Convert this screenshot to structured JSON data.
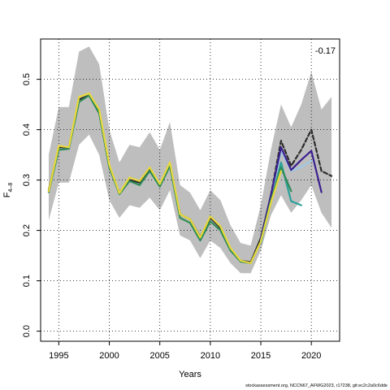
{
  "chart_data": {
    "type": "line",
    "title": "",
    "xlabel": "Years",
    "ylabel_main": "F",
    "ylabel_sub": "4–8",
    "xlim": [
      1993.2,
      2022.8
    ],
    "ylim": [
      -0.02,
      0.58
    ],
    "xticks": [
      1995,
      2000,
      2005,
      2010,
      2015,
      2020
    ],
    "yticks": [
      0.0,
      0.1,
      0.2,
      0.3,
      0.4,
      0.5
    ],
    "ytick_labels": [
      "0.0",
      "0.1",
      "0.2",
      "0.3",
      "0.4",
      "0.5"
    ],
    "grid": true,
    "grid_style": "dotted",
    "annotation": "-0.17",
    "credit": "stockassessment.org, NCCN67_AFWG2023, r17238, git:ec2c2a0c6dde",
    "band": {
      "color": "#bebebe",
      "x": [
        1994,
        1995,
        1996,
        1997,
        1998,
        1999,
        2000,
        2001,
        2002,
        2003,
        2004,
        2005,
        2006,
        2007,
        2008,
        2009,
        2010,
        2011,
        2012,
        2013,
        2014,
        2015,
        2016,
        2017,
        2018,
        2019,
        2020,
        2021,
        2022
      ],
      "upper": [
        0.35,
        0.445,
        0.445,
        0.555,
        0.565,
        0.53,
        0.4,
        0.335,
        0.37,
        0.365,
        0.395,
        0.36,
        0.415,
        0.29,
        0.275,
        0.24,
        0.28,
        0.26,
        0.21,
        0.175,
        0.17,
        0.25,
        0.36,
        0.45,
        0.405,
        0.45,
        0.515,
        0.44,
        0.465
      ],
      "lower": [
        0.22,
        0.295,
        0.295,
        0.37,
        0.39,
        0.35,
        0.26,
        0.225,
        0.25,
        0.245,
        0.265,
        0.24,
        0.28,
        0.19,
        0.18,
        0.145,
        0.18,
        0.165,
        0.135,
        0.115,
        0.115,
        0.16,
        0.23,
        0.27,
        0.235,
        0.26,
        0.29,
        0.235,
        0.205
      ]
    },
    "series": [
      {
        "color": "#2c2c2c",
        "dashed": false,
        "x": [
          1994,
          1995,
          1996,
          1997,
          1998,
          1999,
          2000,
          2001,
          2002,
          2003,
          2004,
          2005,
          2006,
          2007,
          2008,
          2009,
          2010,
          2011,
          2012,
          2013,
          2014,
          2015,
          2016
        ],
        "y": [
          0.28,
          0.365,
          0.365,
          0.46,
          0.468,
          0.435,
          0.325,
          0.275,
          0.3,
          0.295,
          0.322,
          0.29,
          0.33,
          0.232,
          0.222,
          0.187,
          0.225,
          0.205,
          0.163,
          0.14,
          0.137,
          0.185,
          0.27
        ]
      },
      {
        "color": "#2c2c2c",
        "dashed": true,
        "x": [
          2016,
          2017,
          2018,
          2019,
          2020,
          2021,
          2022
        ],
        "y": [
          0.27,
          0.378,
          0.328,
          0.36,
          0.4,
          0.318,
          0.308
        ]
      },
      {
        "color": "#9ec8e6",
        "dashed": false,
        "x": [
          2015,
          2016,
          2017,
          2018,
          2019,
          2020
        ],
        "y": [
          0.18,
          0.263,
          0.358,
          0.318,
          0.326,
          0.338
        ]
      },
      {
        "color": "#3b1f8f",
        "dashed": false,
        "x": [
          2015,
          2016,
          2017,
          2018,
          2019,
          2020,
          2021
        ],
        "y": [
          0.183,
          0.27,
          0.365,
          0.32,
          0.34,
          0.358,
          0.276
        ]
      },
      {
        "color": "#2aa198",
        "dashed": false,
        "x": [
          2015,
          2016,
          2017,
          2018,
          2019
        ],
        "y": [
          0.175,
          0.255,
          0.335,
          0.258,
          0.25
        ]
      },
      {
        "color": "#2e8b57",
        "dashed": false,
        "x": [
          1994,
          1995,
          1996,
          1997,
          1998,
          1999,
          2000,
          2001,
          2002,
          2003,
          2004,
          2005,
          2006,
          2007,
          2008,
          2009,
          2010,
          2011,
          2012,
          2013,
          2014,
          2015,
          2016,
          2017,
          2018
        ],
        "y": [
          0.276,
          0.36,
          0.362,
          0.455,
          0.468,
          0.432,
          0.325,
          0.272,
          0.298,
          0.29,
          0.318,
          0.287,
          0.328,
          0.225,
          0.215,
          0.18,
          0.218,
          0.2,
          0.16,
          0.138,
          0.135,
          0.178,
          0.26,
          0.325,
          0.278
        ]
      },
      {
        "color": "#e8d93a",
        "dashed": false,
        "x": [
          1994,
          1995,
          1996,
          1997,
          1998,
          1999,
          2000,
          2001,
          2002,
          2003,
          2004,
          2005,
          2006,
          2007,
          2008,
          2009,
          2010,
          2011,
          2012,
          2013,
          2014,
          2015,
          2016,
          2017
        ],
        "y": [
          0.278,
          0.368,
          0.365,
          0.465,
          0.472,
          0.44,
          0.33,
          0.274,
          0.305,
          0.298,
          0.325,
          0.292,
          0.335,
          0.232,
          0.222,
          0.186,
          0.228,
          0.208,
          0.165,
          0.14,
          0.135,
          0.178,
          0.255,
          0.318
        ]
      }
    ]
  }
}
